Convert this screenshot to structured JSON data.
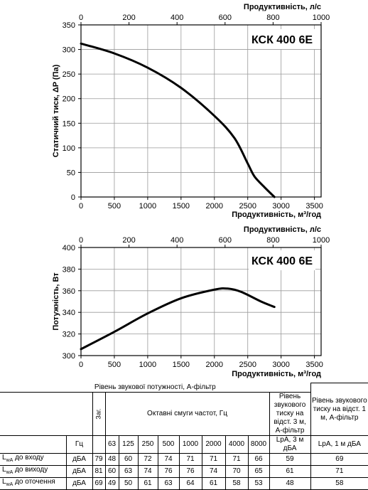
{
  "charts": [
    {
      "id": "pressure",
      "model": "КСК 400 6Е",
      "top_axis_label": "Продуктивність, л/с",
      "bottom_axis_label": "Продуктивність, м³/год",
      "y_axis_label": "Статичний тиск, ΔP (Па)",
      "top_ticks": [
        "0",
        "200",
        "400",
        "600",
        "800",
        "1000"
      ],
      "bottom_ticks": [
        "0",
        "500",
        "1000",
        "1500",
        "2000",
        "2500",
        "3000",
        "3500"
      ],
      "y_ticks": [
        "0",
        "50",
        "100",
        "150",
        "200",
        "250",
        "300",
        "350"
      ]
    },
    {
      "id": "power",
      "model": "КСК 400 6Е",
      "top_axis_label": "Продуктивність, л/с",
      "bottom_axis_label": "Продуктивність, м³/год",
      "y_axis_label": "Потужність, Вт",
      "top_ticks": [
        "0",
        "200",
        "400",
        "600",
        "800",
        "1000"
      ],
      "bottom_ticks": [
        "0",
        "500",
        "1000",
        "1500",
        "2000",
        "2500",
        "3000",
        "3500"
      ],
      "y_ticks": [
        "300",
        "320",
        "340",
        "360",
        "380",
        "400"
      ]
    }
  ],
  "chart_data": [
    {
      "type": "line",
      "xlabel": "Продуктивність, м³/год",
      "ylabel": "Статичний тиск, ΔP (Па)",
      "xlim": [
        0,
        3600
      ],
      "ylim": [
        0,
        350
      ],
      "x2label": "Продуктивність, л/с",
      "x2lim": [
        0,
        1000
      ],
      "grid": true,
      "series": [
        {
          "x": [
            0,
            500,
            1000,
            1500,
            2000,
            2300,
            2500,
            2600,
            2750,
            2900
          ],
          "y": [
            312,
            292,
            263,
            222,
            165,
            120,
            68,
            42,
            20,
            0
          ]
        }
      ]
    },
    {
      "type": "line",
      "xlabel": "Продуктивність, м³/год",
      "ylabel": "Потужність, Вт",
      "xlim": [
        0,
        3600
      ],
      "ylim": [
        300,
        400
      ],
      "x2label": "Продуктивність, л/с",
      "x2lim": [
        0,
        1000
      ],
      "grid": true,
      "series": [
        {
          "x": [
            0,
            500,
            1000,
            1500,
            2000,
            2200,
            2400,
            2700,
            2900
          ],
          "y": [
            306,
            322,
            339,
            353,
            361,
            362,
            359,
            350,
            345
          ]
        }
      ]
    }
  ],
  "table": {
    "sound_power_header": "Рівень звукової потужності, А-фільтр",
    "total_header": "Заг.",
    "octave_header": "Октавні смуги частот, Гц",
    "hz_unit": "Гц",
    "lpa3_header": "Рівень звукового тиску на відст. 3 м, А-фільтр",
    "lpa1_header": "Рівень звукового тиску на відст. 1 м, А-фільтр",
    "freqs": [
      "63",
      "125",
      "250",
      "500",
      "1000",
      "2000",
      "4000",
      "8000"
    ],
    "lpa3_col": "LpA, 3 м дБА",
    "lpa1_col": "LpA, 1 м дБА",
    "rows": [
      {
        "label": "L",
        "sub": "wA",
        "suffix": " до входу",
        "unit": "дБА",
        "total": "79",
        "values": [
          "48",
          "60",
          "72",
          "74",
          "71",
          "71",
          "71",
          "66"
        ],
        "lpa3": "59",
        "lpa1": "69"
      },
      {
        "label": "L",
        "sub": "wA",
        "suffix": " до виходу",
        "unit": "дБА",
        "total": "81",
        "values": [
          "60",
          "63",
          "74",
          "76",
          "76",
          "74",
          "70",
          "65"
        ],
        "lpa3": "61",
        "lpa1": "71"
      },
      {
        "label": "L",
        "sub": "wA",
        "suffix": " до оточення",
        "unit": "дБА",
        "total": "69",
        "values": [
          "49",
          "50",
          "61",
          "63",
          "64",
          "61",
          "58",
          "53"
        ],
        "lpa3": "48",
        "lpa1": "58"
      }
    ]
  }
}
